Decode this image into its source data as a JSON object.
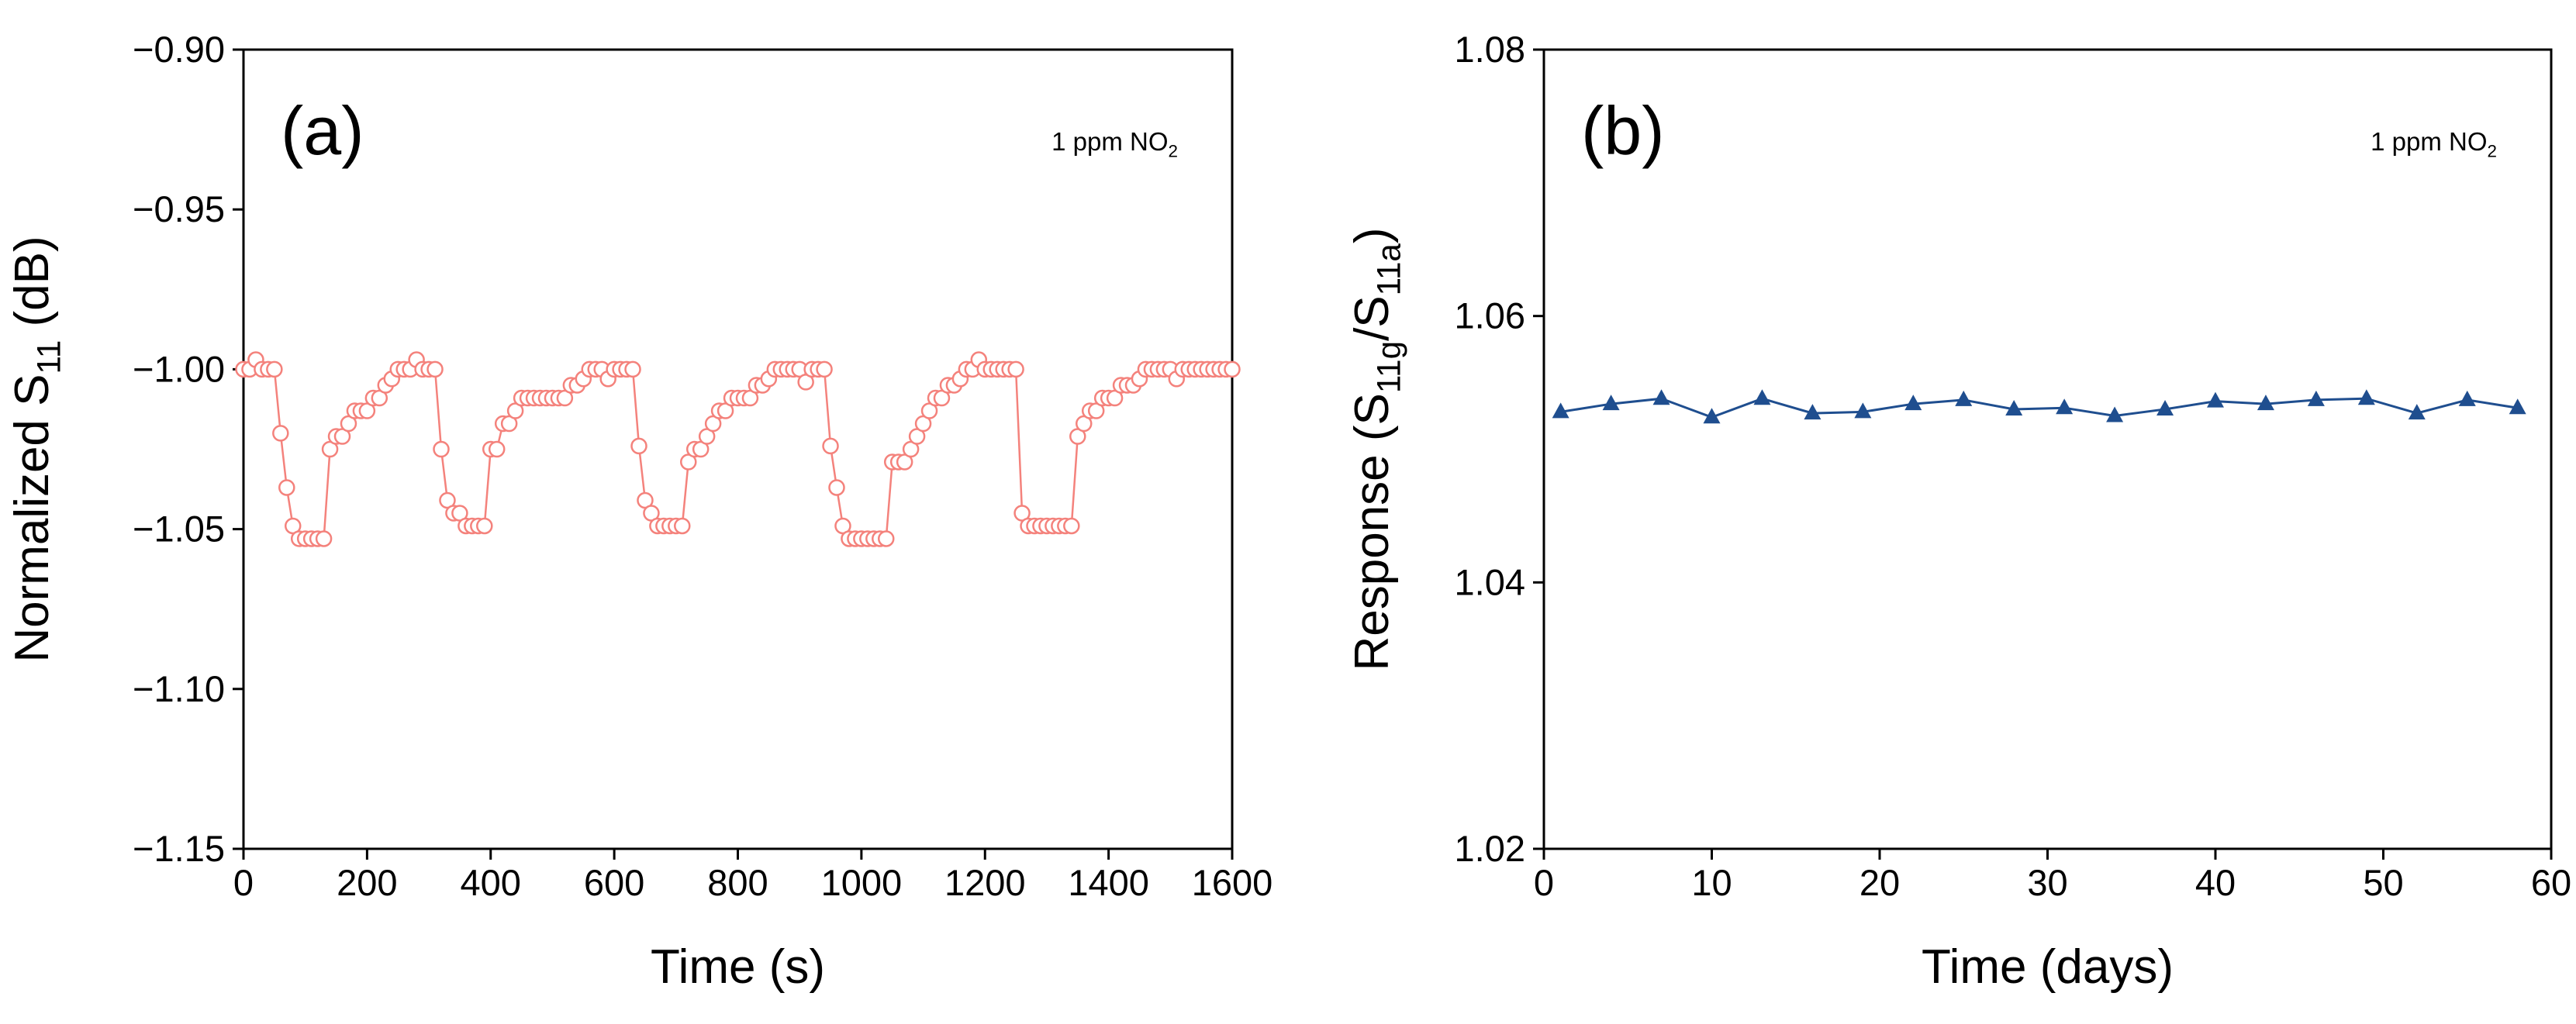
{
  "chart_data": [
    {
      "type": "line",
      "panel_label": "(a)",
      "annotation": [
        "1 ppm NO",
        "2"
      ],
      "x_label": "Time (s)",
      "y_label": [
        "Normalized S",
        "11",
        " (dB)"
      ],
      "xlim": [
        0,
        1600
      ],
      "xticks": [
        0,
        200,
        400,
        600,
        800,
        1000,
        1200,
        1400,
        1600
      ],
      "ylim": [
        -1.15,
        -0.9
      ],
      "yticks": [
        {
          "value": -1.15,
          "label": "−1.15"
        },
        {
          "value": -1.1,
          "label": "−1.10"
        },
        {
          "value": -1.05,
          "label": "−1.05"
        },
        {
          "value": -1.0,
          "label": "−1.00"
        },
        {
          "value": -0.95,
          "label": "−0.95"
        },
        {
          "value": -0.9,
          "label": "−0.90"
        }
      ],
      "marker": "open-circle",
      "series": [
        {
          "color": "#f4827c",
          "x": [
            0,
            10,
            20,
            30,
            40,
            50,
            60,
            70,
            80,
            90,
            100,
            110,
            120,
            130,
            140,
            150,
            160,
            170,
            180,
            190,
            200,
            210,
            220,
            230,
            240,
            250,
            260,
            270,
            280,
            290,
            300,
            310,
            320,
            330,
            340,
            350,
            360,
            370,
            380,
            390,
            400,
            410,
            420,
            430,
            440,
            450,
            460,
            470,
            480,
            490,
            500,
            510,
            520,
            530,
            540,
            550,
            560,
            570,
            580,
            590,
            600,
            610,
            620,
            630,
            640,
            650,
            660,
            670,
            680,
            690,
            700,
            710,
            720,
            730,
            740,
            750,
            760,
            770,
            780,
            790,
            800,
            810,
            820,
            830,
            840,
            850,
            860,
            870,
            880,
            890,
            900,
            910,
            920,
            930,
            940,
            950,
            960,
            970,
            980,
            990,
            1000,
            1010,
            1020,
            1030,
            1040,
            1050,
            1060,
            1070,
            1080,
            1090,
            1100,
            1110,
            1120,
            1130,
            1140,
            1150,
            1160,
            1170,
            1180,
            1190,
            1200,
            1210,
            1220,
            1230,
            1240,
            1250,
            1260,
            1270,
            1280,
            1290,
            1300,
            1310,
            1320,
            1330,
            1340,
            1350,
            1360,
            1370,
            1380,
            1390,
            1400,
            1410,
            1420,
            1430,
            1440,
            1450,
            1460,
            1470,
            1480,
            1490,
            1500,
            1510,
            1520,
            1530,
            1540,
            1550,
            1560,
            1570,
            1580,
            1590,
            1600
          ],
          "values": [
            -1.0,
            -1.0,
            -0.997,
            -1.0,
            -1.0,
            -1.0,
            -1.02,
            -1.037,
            -1.049,
            -1.053,
            -1.053,
            -1.053,
            -1.053,
            -1.053,
            -1.025,
            -1.021,
            -1.021,
            -1.017,
            -1.013,
            -1.013,
            -1.013,
            -1.009,
            -1.009,
            -1.005,
            -1.003,
            -1.0,
            -1.0,
            -1.0,
            -0.997,
            -1.0,
            -1.0,
            -1.0,
            -1.025,
            -1.041,
            -1.045,
            -1.045,
            -1.049,
            -1.049,
            -1.049,
            -1.049,
            -1.025,
            -1.025,
            -1.017,
            -1.017,
            -1.013,
            -1.009,
            -1.009,
            -1.009,
            -1.009,
            -1.009,
            -1.009,
            -1.009,
            -1.009,
            -1.005,
            -1.005,
            -1.003,
            -1.0,
            -1.0,
            -1.0,
            -1.003,
            -1.0,
            -1.0,
            -1.0,
            -1.0,
            -1.024,
            -1.041,
            -1.045,
            -1.049,
            -1.049,
            -1.049,
            -1.049,
            -1.049,
            -1.029,
            -1.025,
            -1.025,
            -1.021,
            -1.017,
            -1.013,
            -1.013,
            -1.009,
            -1.009,
            -1.009,
            -1.009,
            -1.005,
            -1.005,
            -1.003,
            -1.0,
            -1.0,
            -1.0,
            -1.0,
            -1.0,
            -1.004,
            -1.0,
            -1.0,
            -1.0,
            -1.024,
            -1.037,
            -1.049,
            -1.053,
            -1.053,
            -1.053,
            -1.053,
            -1.053,
            -1.053,
            -1.053,
            -1.029,
            -1.029,
            -1.029,
            -1.025,
            -1.021,
            -1.017,
            -1.013,
            -1.009,
            -1.009,
            -1.005,
            -1.005,
            -1.003,
            -1.0,
            -1.0,
            -0.997,
            -1.0,
            -1.0,
            -1.0,
            -1.0,
            -1.0,
            -1.0,
            -1.045,
            -1.049,
            -1.049,
            -1.049,
            -1.049,
            -1.049,
            -1.049,
            -1.049,
            -1.049,
            -1.021,
            -1.017,
            -1.013,
            -1.013,
            -1.009,
            -1.009,
            -1.009,
            -1.005,
            -1.005,
            -1.005,
            -1.003,
            -1.0,
            -1.0,
            -1.0,
            -1.0,
            -1.0,
            -1.003,
            -1.0,
            -1.0,
            -1.0,
            -1.0,
            -1.0,
            -1.0,
            -1.0,
            -1.0,
            -1.0
          ]
        }
      ]
    },
    {
      "type": "line",
      "panel_label": "(b)",
      "annotation": [
        "1 ppm NO",
        "2"
      ],
      "x_label": "Time (days)",
      "y_label": [
        "Response (S",
        "11g",
        "/S",
        "11a",
        ")"
      ],
      "xlim": [
        0,
        60
      ],
      "xticks": [
        0,
        10,
        20,
        30,
        40,
        50,
        60
      ],
      "ylim": [
        1.02,
        1.08
      ],
      "yticks": [
        1.02,
        1.04,
        1.06,
        1.08
      ],
      "marker": "filled-triangle",
      "series": [
        {
          "color": "#1f4e8f",
          "x": [
            1,
            4,
            7,
            10,
            13,
            16,
            19,
            22,
            25,
            28,
            31,
            34,
            37,
            40,
            43,
            46,
            49,
            52,
            55,
            58
          ],
          "values": [
            1.0528,
            1.0534,
            1.0538,
            1.0524,
            1.0538,
            1.0527,
            1.0528,
            1.0534,
            1.0537,
            1.053,
            1.0531,
            1.0525,
            1.053,
            1.0536,
            1.0534,
            1.0537,
            1.0538,
            1.0527,
            1.0537,
            1.0531
          ]
        }
      ]
    }
  ]
}
